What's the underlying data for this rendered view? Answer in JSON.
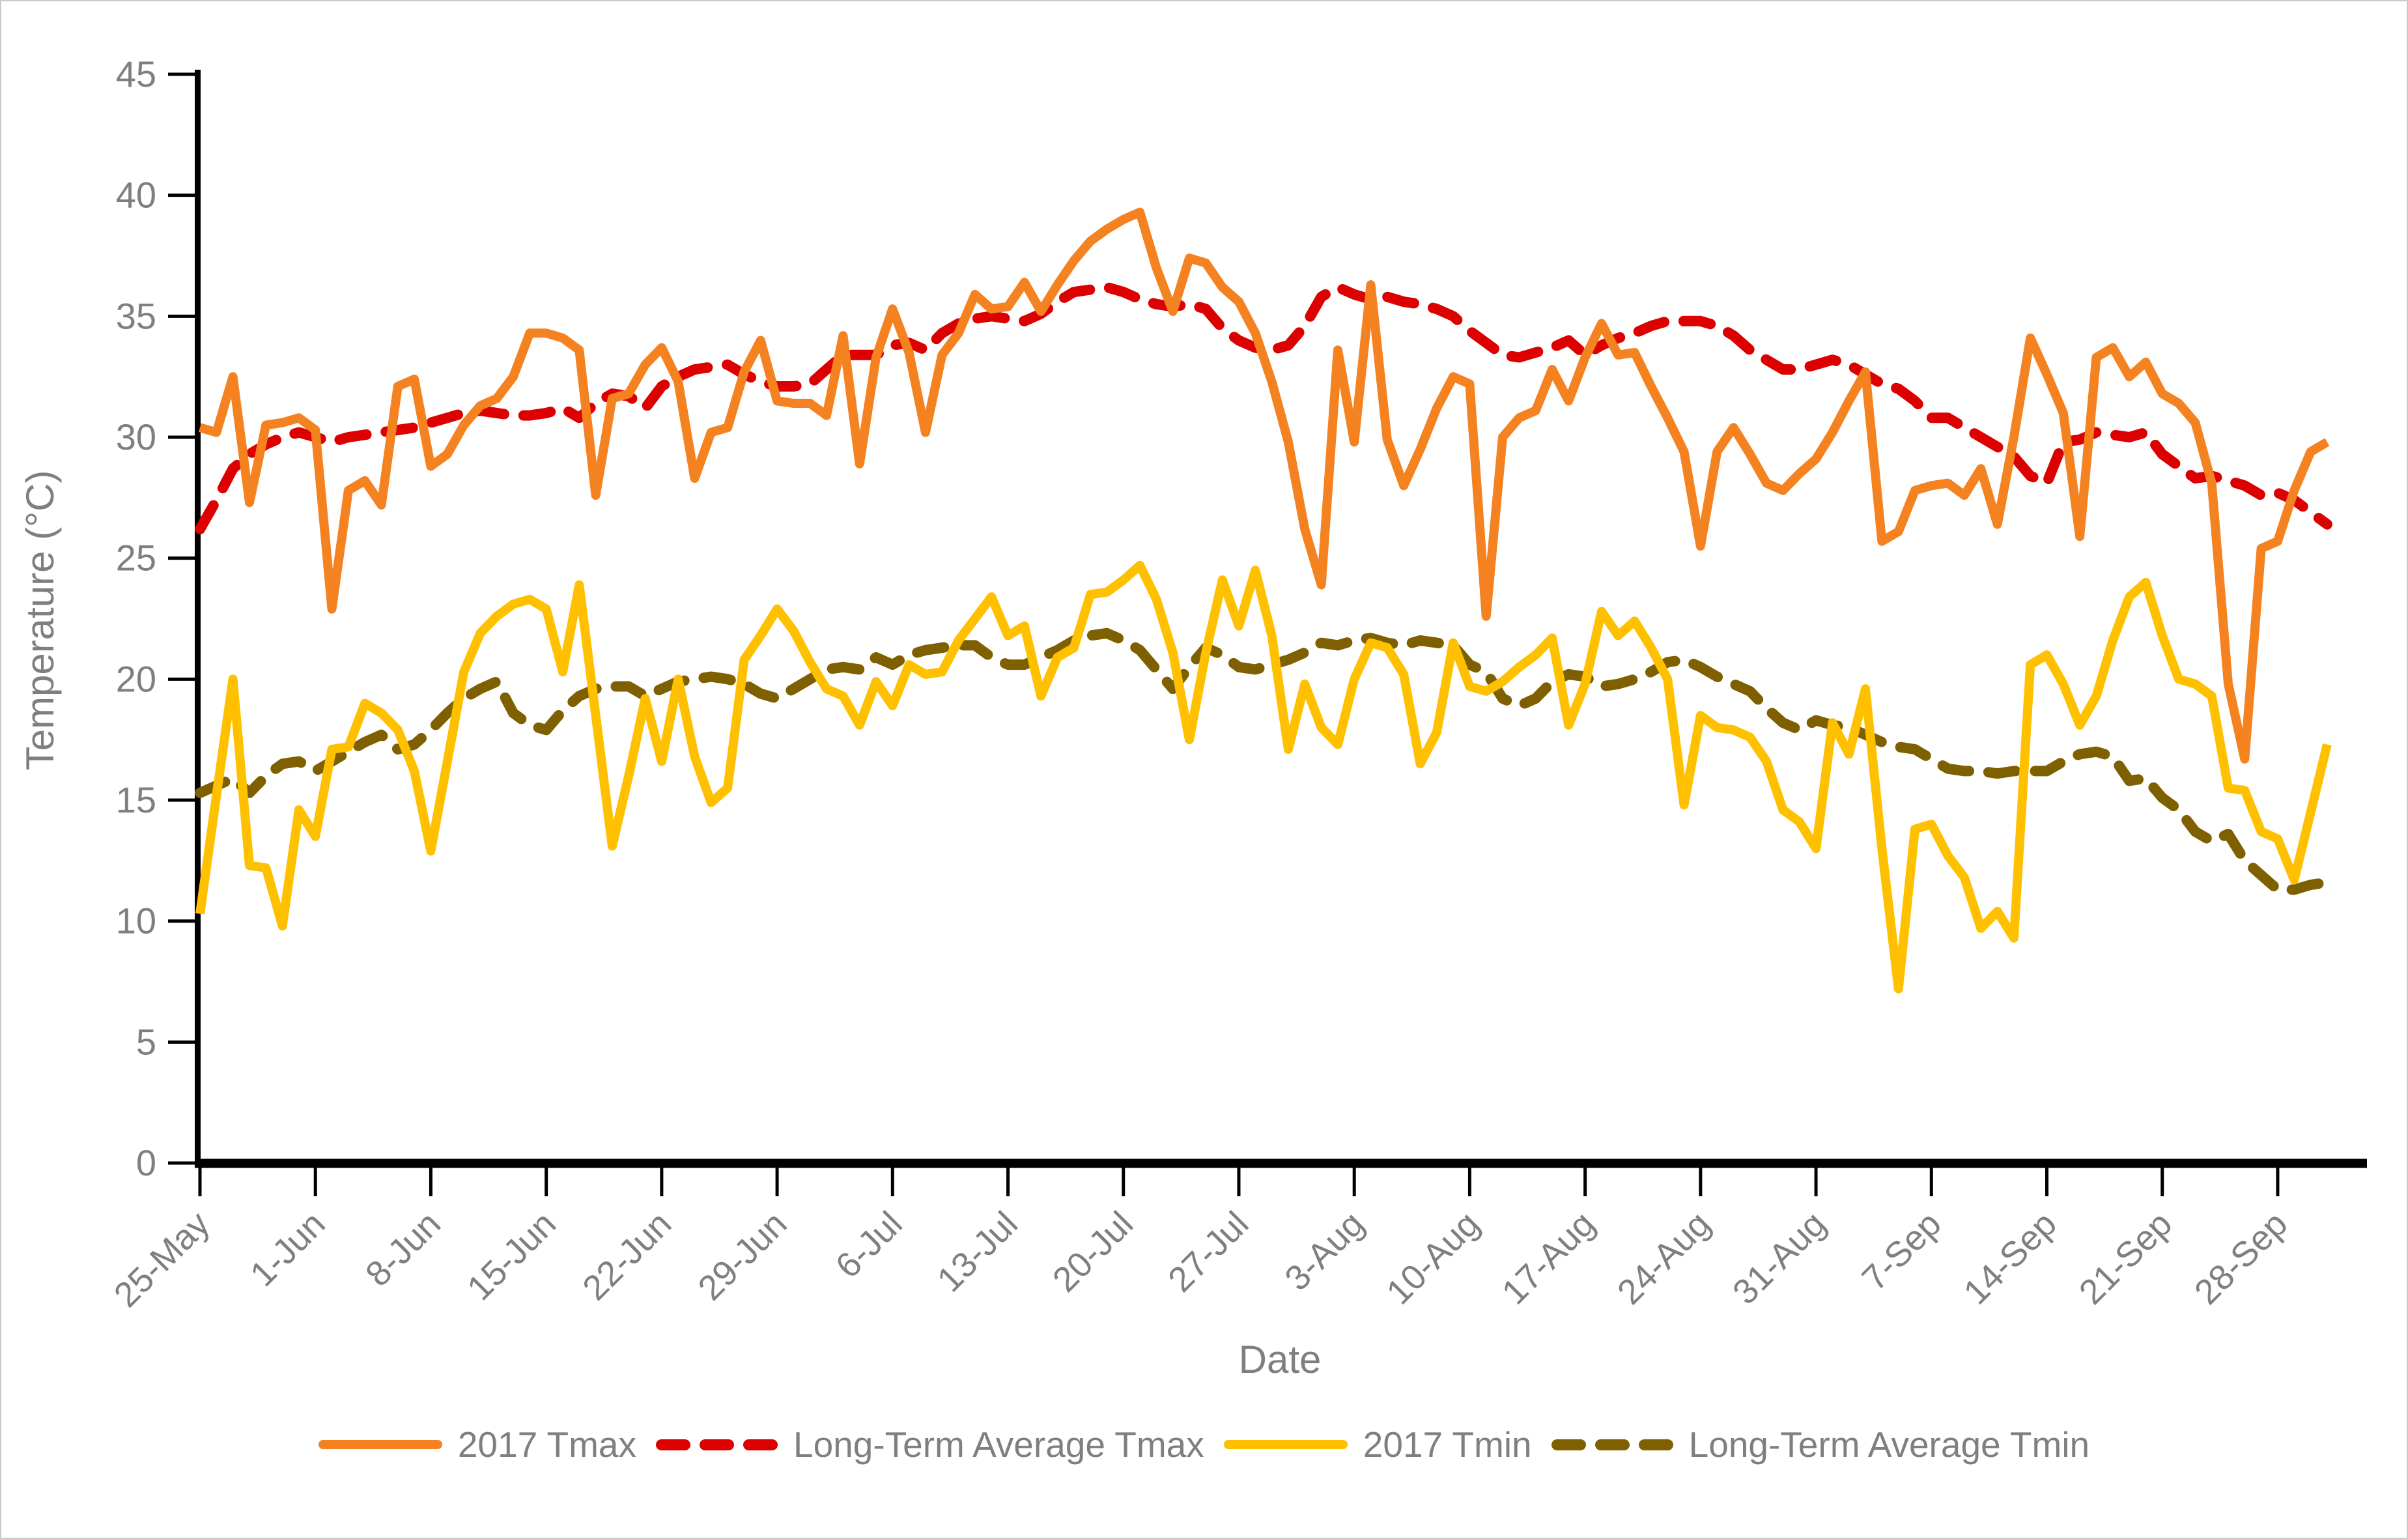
{
  "legend": {
    "items": [
      {
        "label": "2017 Tmax",
        "color": "#F58220",
        "style": "solid"
      },
      {
        "label": "Long-Term Average Tmax",
        "color": "#DD0000",
        "style": "dashed"
      },
      {
        "label": "2017 Tmin",
        "color": "#FFC000",
        "style": "solid"
      },
      {
        "label": "Long-Term Average Tmin",
        "color": "#7F6000",
        "style": "dashed"
      }
    ]
  },
  "chart_data": {
    "type": "line",
    "title": "",
    "xlabel": "Date",
    "ylabel": "Temperature (°C)",
    "ylim": [
      0,
      45
    ],
    "y_ticks": [
      0,
      5,
      10,
      15,
      20,
      25,
      30,
      35,
      40,
      45
    ],
    "x_start_date": "25-May",
    "x_interval_days": 1,
    "n_points": 130,
    "x_tick_positions": [
      0,
      7,
      14,
      21,
      28,
      35,
      42,
      49,
      56,
      63,
      70,
      77,
      84,
      91,
      98,
      105,
      112,
      119,
      126
    ],
    "x_tick_labels": [
      "25-May",
      "1-Jun",
      "8-Jun",
      "15-Jun",
      "22-Jun",
      "29-Jun",
      "6-Jul",
      "13-Jul",
      "20-Jul",
      "27-Jul",
      "3-Aug",
      "10-Aug",
      "17-Aug",
      "24-Aug",
      "31-Aug",
      "7-Sep",
      "14-Sep",
      "21-Sep",
      "28-Sep"
    ],
    "grid": false,
    "legend_position": "bottom",
    "axis_text_color": "#7f7f7f",
    "series": [
      {
        "name": "2017 Tmax",
        "color": "#F58220",
        "dash": false,
        "values": [
          30.4,
          30.2,
          32.5,
          27.3,
          30.5,
          30.6,
          30.8,
          30.3,
          22.9,
          27.8,
          28.2,
          27.2,
          32.1,
          32.4,
          28.8,
          29.3,
          30.5,
          31.3,
          31.6,
          32.5,
          34.3,
          34.3,
          34.1,
          33.6,
          27.6,
          31.6,
          31.8,
          33.0,
          33.7,
          32.3,
          28.3,
          30.2,
          30.4,
          32.7,
          34.0,
          31.5,
          31.4,
          31.4,
          30.9,
          34.2,
          28.9,
          33.3,
          35.3,
          33.5,
          30.2,
          33.4,
          34.3,
          35.9,
          35.3,
          35.4,
          36.4,
          35.2,
          36.3,
          37.3,
          38.1,
          38.6,
          39.0,
          39.3,
          37.0,
          35.2,
          37.4,
          37.2,
          36.2,
          35.6,
          34.3,
          32.3,
          29.8,
          26.2,
          23.9,
          33.6,
          29.8,
          36.3,
          29.9,
          28.0,
          29.5,
          31.2,
          32.5,
          32.2,
          22.6,
          30.0,
          30.8,
          31.1,
          32.8,
          31.5,
          33.3,
          34.7,
          33.4,
          33.5,
          32.1,
          30.8,
          29.4,
          25.5,
          29.4,
          30.4,
          29.3,
          28.1,
          27.8,
          28.5,
          29.1,
          30.2,
          31.5,
          32.7,
          25.7,
          26.1,
          27.8,
          28.0,
          28.1,
          27.6,
          28.7,
          26.4,
          30.0,
          34.1,
          32.6,
          31.0,
          25.9,
          33.3,
          33.7,
          32.5,
          33.1,
          31.8,
          31.4,
          30.6,
          28.1,
          19.8,
          16.7,
          25.4,
          25.7,
          27.8,
          29.4,
          29.8
        ]
      },
      {
        "name": "Long-Term Average Tmax",
        "color": "#DD0000",
        "dash": true,
        "values": [
          26.2,
          27.4,
          28.7,
          29.3,
          29.7,
          30.0,
          30.2,
          30.0,
          29.8,
          30.0,
          30.1,
          30.2,
          30.3,
          30.4,
          30.6,
          30.8,
          31.0,
          31.1,
          31.0,
          30.9,
          30.9,
          31.0,
          31.2,
          30.8,
          31.4,
          31.8,
          31.7,
          31.2,
          32.1,
          32.5,
          32.8,
          32.9,
          33.0,
          32.6,
          32.3,
          32.1,
          32.1,
          32.2,
          32.8,
          33.4,
          33.4,
          33.4,
          33.8,
          33.9,
          33.6,
          34.3,
          34.7,
          34.9,
          35.0,
          34.9,
          34.8,
          35.1,
          35.6,
          36.0,
          36.1,
          36.2,
          36.0,
          35.7,
          35.5,
          35.4,
          35.5,
          35.3,
          34.5,
          34.0,
          33.7,
          33.6,
          33.8,
          34.6,
          35.8,
          36.2,
          35.9,
          35.7,
          35.8,
          35.6,
          35.5,
          35.3,
          35.0,
          34.4,
          33.9,
          33.4,
          33.3,
          33.5,
          33.7,
          34.0,
          33.4,
          33.8,
          34.1,
          34.3,
          34.6,
          34.8,
          34.8,
          34.8,
          34.6,
          34.2,
          33.6,
          33.2,
          32.8,
          32.8,
          33.0,
          33.2,
          33.0,
          32.6,
          32.2,
          32.0,
          31.5,
          30.8,
          30.8,
          30.4,
          30.0,
          29.6,
          29.2,
          28.4,
          28.1,
          29.8,
          29.9,
          30.2,
          30.1,
          30.0,
          30.2,
          29.3,
          28.8,
          28.3,
          28.4,
          28.2,
          28.0,
          27.6,
          27.7,
          27.4,
          26.9,
          26.4
        ]
      },
      {
        "name": "2017 Tmin",
        "color": "#FFC000",
        "dash": false,
        "values": [
          10.3,
          15.2,
          20.0,
          12.3,
          12.2,
          9.8,
          14.6,
          13.5,
          17.1,
          17.2,
          19.0,
          18.6,
          17.9,
          16.2,
          12.9,
          16.6,
          20.3,
          21.9,
          22.6,
          23.1,
          23.3,
          22.9,
          20.3,
          23.9,
          18.5,
          13.1,
          16.0,
          19.2,
          16.6,
          20.0,
          16.8,
          14.9,
          15.5,
          20.8,
          21.8,
          22.9,
          22.0,
          20.7,
          19.6,
          19.3,
          18.1,
          19.9,
          18.9,
          20.6,
          20.2,
          20.3,
          21.6,
          22.5,
          23.4,
          21.8,
          22.2,
          19.3,
          20.9,
          21.3,
          23.5,
          23.6,
          24.1,
          24.7,
          23.3,
          21.1,
          17.5,
          21.1,
          24.1,
          22.2,
          24.5,
          21.8,
          17.1,
          19.8,
          18.0,
          17.3,
          20.0,
          21.5,
          21.3,
          20.2,
          16.5,
          17.8,
          21.5,
          19.7,
          19.5,
          19.9,
          20.5,
          21.0,
          21.7,
          18.1,
          19.8,
          22.8,
          21.8,
          22.4,
          21.3,
          20.0,
          14.8,
          18.5,
          18.0,
          17.9,
          17.6,
          16.6,
          14.6,
          14.1,
          13.0,
          18.2,
          16.9,
          19.6,
          13.0,
          7.2,
          13.8,
          14.0,
          12.7,
          11.8,
          9.7,
          10.4,
          9.3,
          20.6,
          21.0,
          19.8,
          18.1,
          19.3,
          21.6,
          23.4,
          24.0,
          21.8,
          20.0,
          19.8,
          19.3,
          15.5,
          15.4,
          13.7,
          13.4,
          11.7,
          14.5,
          17.3
        ]
      },
      {
        "name": "Long-Term Average Tmin",
        "color": "#7F6000",
        "dash": true,
        "values": [
          15.3,
          15.6,
          15.9,
          15.3,
          16.0,
          16.5,
          16.6,
          16.2,
          16.6,
          17.0,
          17.4,
          17.7,
          17.1,
          17.3,
          17.9,
          18.6,
          19.2,
          19.6,
          19.9,
          18.6,
          18.1,
          17.9,
          18.7,
          19.3,
          19.6,
          19.7,
          19.7,
          19.3,
          19.6,
          19.9,
          20.0,
          20.1,
          20.0,
          19.8,
          19.4,
          19.2,
          19.6,
          20.0,
          20.4,
          20.5,
          20.4,
          20.9,
          20.6,
          21.0,
          21.2,
          21.3,
          21.4,
          21.4,
          20.9,
          20.6,
          20.6,
          20.9,
          21.2,
          21.6,
          21.8,
          21.9,
          21.6,
          21.2,
          20.4,
          19.6,
          20.5,
          21.3,
          21.0,
          20.5,
          20.4,
          20.6,
          20.8,
          21.1,
          21.5,
          21.4,
          21.6,
          21.7,
          21.5,
          21.4,
          21.6,
          21.5,
          21.4,
          20.6,
          20.3,
          19.2,
          18.9,
          19.2,
          19.9,
          20.2,
          20.1,
          19.7,
          19.8,
          20.0,
          20.3,
          20.7,
          20.8,
          20.5,
          20.1,
          19.8,
          19.5,
          18.8,
          18.2,
          17.9,
          18.3,
          18.1,
          18.0,
          17.7,
          17.4,
          17.2,
          17.1,
          16.7,
          16.3,
          16.2,
          16.2,
          16.1,
          16.2,
          16.2,
          16.2,
          16.6,
          16.9,
          17.0,
          16.8,
          15.8,
          15.9,
          15.1,
          14.6,
          13.7,
          13.3,
          13.6,
          12.5,
          11.9,
          11.3,
          11.3,
          11.5,
          11.6
        ]
      }
    ]
  }
}
